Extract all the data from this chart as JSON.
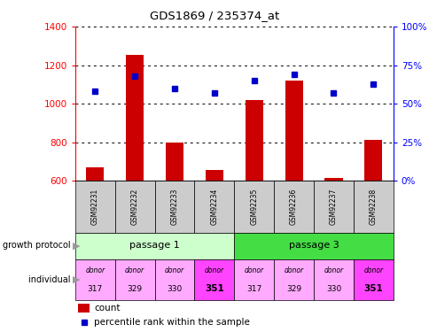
{
  "title": "GDS1869 / 235374_at",
  "samples": [
    "GSM92231",
    "GSM92232",
    "GSM92233",
    "GSM92234",
    "GSM92235",
    "GSM92236",
    "GSM92237",
    "GSM92238"
  ],
  "count_values": [
    670,
    1255,
    800,
    655,
    1020,
    1120,
    615,
    815
  ],
  "count_baseline": 600,
  "percentile_values": [
    58,
    68,
    60,
    57,
    65,
    69,
    57,
    63
  ],
  "ylim_left": [
    600,
    1400
  ],
  "ylim_right": [
    0,
    100
  ],
  "yticks_left": [
    600,
    800,
    1000,
    1200,
    1400
  ],
  "yticks_right": [
    0,
    25,
    50,
    75,
    100
  ],
  "bar_color": "#cc0000",
  "dot_color": "#0000cc",
  "passage_groups": [
    {
      "label": "passage 1",
      "start": 0,
      "end": 4,
      "color": "#ccffcc"
    },
    {
      "label": "passage 3",
      "start": 4,
      "end": 8,
      "color": "#44dd44"
    }
  ],
  "individual_labels_top": [
    "donor",
    "donor",
    "donor",
    "donor",
    "donor",
    "donor",
    "donor",
    "donor"
  ],
  "individual_labels_bot": [
    "317",
    "329",
    "330",
    "351",
    "317",
    "329",
    "330",
    "351"
  ],
  "individual_colors": [
    "#ffaaff",
    "#ffaaff",
    "#ffaaff",
    "#ff44ff",
    "#ffaaff",
    "#ffaaff",
    "#ffaaff",
    "#ff44ff"
  ],
  "individual_bold": [
    false,
    false,
    false,
    true,
    false,
    false,
    false,
    true
  ],
  "sample_bg_color": "#cccccc",
  "legend_count_color": "#cc0000",
  "legend_pct_color": "#0000cc",
  "growth_protocol_label": "growth protocol",
  "individual_label": "individual",
  "left_label_color": "#888888"
}
